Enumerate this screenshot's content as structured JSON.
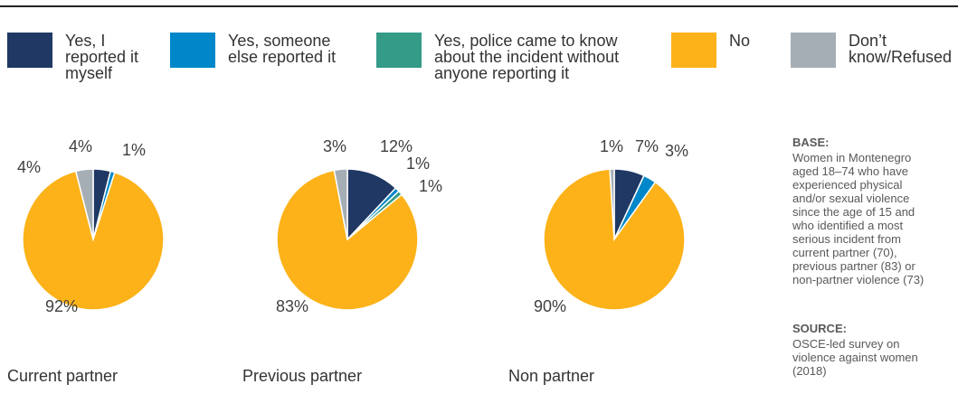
{
  "chart_data": [
    {
      "type": "pie",
      "title": "Current partner",
      "labels": [
        "Yes, I reported it myself",
        "Yes, someone else reported it",
        "No",
        "Don’t know/Refused"
      ],
      "values": [
        4,
        1,
        92,
        4
      ],
      "data_labels": [
        "4%",
        "1%",
        "92%",
        "4%"
      ],
      "colors": [
        "#1f3864",
        "#0087c9",
        "#fcb218",
        "#a5aeb5"
      ]
    },
    {
      "type": "pie",
      "title": "Previous partner",
      "labels": [
        "Yes, I reported it myself",
        "Yes, someone else reported it",
        "Yes, police came to know about the incident without anyone reporting it",
        "No",
        "Don’t know/Refused"
      ],
      "values": [
        12,
        1,
        1,
        83,
        3
      ],
      "data_labels": [
        "12%",
        "1%",
        "1%",
        "83%",
        "3%"
      ],
      "colors": [
        "#1f3864",
        "#0087c9",
        "#349b87",
        "#fcb218",
        "#a5aeb5"
      ]
    },
    {
      "type": "pie",
      "title": "Non partner",
      "labels": [
        "Yes, I reported it myself",
        "Yes, someone else reported it",
        "No",
        "Don’t know/Refused"
      ],
      "values": [
        7,
        3,
        90,
        1
      ],
      "data_labels": [
        "7%",
        "3%",
        "90%",
        "1%"
      ],
      "colors": [
        "#1f3864",
        "#0087c9",
        "#fcb218",
        "#a5aeb5"
      ]
    }
  ],
  "legend": [
    {
      "lines": [
        "Yes, I",
        "reported it",
        "myself"
      ],
      "color": "#1f3864"
    },
    {
      "lines": [
        "Yes, someone",
        "else reported it"
      ],
      "color": "#0087c9"
    },
    {
      "lines": [
        "Yes, police came to know",
        "about the incident without",
        "anyone reporting it"
      ],
      "color": "#349b87"
    },
    {
      "lines": [
        "No"
      ],
      "color": "#fcb218"
    },
    {
      "lines": [
        "Don’t",
        "know/Refused"
      ],
      "color": "#a5aeb5"
    }
  ],
  "base": {
    "heading": "BASE:",
    "lines": [
      "Women in Montenegro",
      "aged 18–74 who have",
      "experienced physical",
      "and/or sexual violence",
      "since the age of 15 and",
      "who identified a most",
      "serious incident from",
      "current partner (70),",
      "previous partner (83) or",
      "non-partner violence (73)"
    ]
  },
  "source": {
    "heading": "SOURCE:",
    "lines": [
      "OSCE-led survey on",
      "violence against women",
      "(2018)"
    ]
  }
}
